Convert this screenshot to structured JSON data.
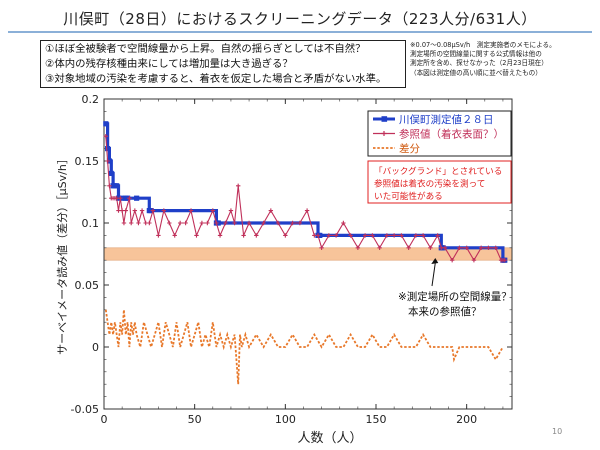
{
  "slide": {
    "title": "川俣町（28日）におけるスクリーニングデータ（223人分/631人）",
    "notes": [
      "①ほぼ全被験者で空間線量から上昇。自然の揺らぎとしては不自然？",
      "②体内の残存核種由来にしては増加量は大き過ぎる？",
      "③対象地域の汚染を考慮すると、着衣を仮定した場合と矛盾がない水準。"
    ],
    "memo": [
      "※0.07〜0.08μSv/h　測定実施者のメモによる。",
      "測定場所の空間線量に関する公式情報は他の",
      "測定所を含め、探せなかった（2月23日現在）",
      "（本図は測定値の高い順に並べ替えたもの）"
    ],
    "page_number": "10",
    "colors": {
      "title_rule": "#8bb0d8",
      "measured": "#1f3fc8",
      "reference": "#c0305a",
      "difference": "#e8782a",
      "band": "#f7c49a",
      "annotation_red": "#e02020"
    }
  },
  "chart_data": {
    "type": "line",
    "ylabel": "サーベイメータ読み値（差分）［μSv/h］",
    "xlabel": "人数（人）",
    "xlim": [
      0,
      225
    ],
    "ylim": [
      -0.05,
      0.2
    ],
    "xticks": [
      "0",
      "50",
      "100",
      "150",
      "200"
    ],
    "yticks": [
      "-0.05",
      "0",
      "0.05",
      "0.1",
      "0.15",
      "0.2"
    ],
    "grid": false,
    "legend_position": "top-right",
    "background_band": [
      0.07,
      0.08
    ],
    "series": [
      {
        "name": "川俣町測定値２８日",
        "style": "step",
        "color": "#1f3fc8",
        "x": [
          1,
          2,
          3,
          4,
          5,
          6,
          7,
          8,
          10,
          12,
          13,
          18,
          25,
          26,
          62,
          63,
          118,
          119,
          186,
          187,
          220,
          221
        ],
        "y": [
          0.18,
          0.16,
          0.15,
          0.14,
          0.13,
          0.13,
          0.13,
          0.12,
          0.12,
          0.12,
          0.12,
          0.12,
          0.11,
          0.11,
          0.1,
          0.1,
          0.09,
          0.09,
          0.08,
          0.08,
          0.07,
          0.07
        ]
      },
      {
        "name": "参照値（着衣表面？）",
        "style": "line-marker",
        "color": "#c0305a",
        "x": [
          1,
          2,
          3,
          4,
          5,
          6,
          7,
          8,
          9,
          10,
          11,
          12,
          14,
          15,
          17,
          19,
          21,
          23,
          25,
          27,
          30,
          33,
          36,
          39,
          42,
          45,
          48,
          51,
          54,
          57,
          60,
          62,
          64,
          67,
          70,
          72,
          74,
          77,
          80,
          84,
          88,
          92,
          96,
          100,
          104,
          108,
          112,
          116,
          118,
          120,
          124,
          128,
          132,
          136,
          140,
          144,
          148,
          152,
          156,
          160,
          164,
          168,
          172,
          176,
          180,
          184,
          186,
          188,
          192,
          196,
          200,
          204,
          208,
          212,
          216,
          219,
          220,
          221
        ],
        "y": [
          0.17,
          0.15,
          0.13,
          0.12,
          0.12,
          0.12,
          0.12,
          0.11,
          0.12,
          0.11,
          0.1,
          0.11,
          0.12,
          0.1,
          0.11,
          0.1,
          0.11,
          0.1,
          0.1,
          0.11,
          0.09,
          0.11,
          0.1,
          0.09,
          0.1,
          0.1,
          0.11,
          0.09,
          0.1,
          0.1,
          0.11,
          0.1,
          0.09,
          0.1,
          0.11,
          0.1,
          0.13,
          0.09,
          0.1,
          0.09,
          0.1,
          0.11,
          0.1,
          0.09,
          0.1,
          0.1,
          0.11,
          0.09,
          0.09,
          0.08,
          0.09,
          0.09,
          0.1,
          0.09,
          0.08,
          0.09,
          0.09,
          0.08,
          0.09,
          0.09,
          0.09,
          0.08,
          0.09,
          0.09,
          0.08,
          0.09,
          0.08,
          0.08,
          0.07,
          0.08,
          0.08,
          0.07,
          0.08,
          0.08,
          0.08,
          0.07,
          0.07,
          0.07
        ]
      },
      {
        "name": "差分",
        "style": "dashed",
        "color": "#e8782a",
        "x": [
          1,
          2,
          3,
          4,
          5,
          6,
          7,
          8,
          9,
          10,
          11,
          12,
          13,
          14,
          15,
          16,
          17,
          18,
          20,
          22,
          24,
          26,
          28,
          30,
          32,
          34,
          36,
          38,
          40,
          42,
          44,
          46,
          48,
          50,
          52,
          54,
          56,
          58,
          60,
          62,
          64,
          66,
          68,
          70,
          72,
          74,
          75,
          76,
          78,
          80,
          84,
          88,
          92,
          96,
          100,
          104,
          108,
          112,
          116,
          120,
          124,
          128,
          132,
          136,
          140,
          144,
          148,
          152,
          156,
          160,
          164,
          168,
          172,
          176,
          180,
          184,
          188,
          192,
          193,
          196,
          200,
          204,
          208,
          212,
          216,
          220
        ],
        "y": [
          0.03,
          0.02,
          0.01,
          0.02,
          0.01,
          0.02,
          0.01,
          0.0,
          0.02,
          0.01,
          0.03,
          0.01,
          0.02,
          0.0,
          0.02,
          0.01,
          0.02,
          0.01,
          0.0,
          0.02,
          0.01,
          0.0,
          0.01,
          0.02,
          0.0,
          0.02,
          0.01,
          0.0,
          0.02,
          0.0,
          0.01,
          0.02,
          0.0,
          0.01,
          0.02,
          0.0,
          0.01,
          0.0,
          0.02,
          0.0,
          0.01,
          0.0,
          0.01,
          0.0,
          0.01,
          -0.03,
          0.01,
          0.0,
          0.01,
          0.0,
          0.01,
          0.0,
          0.01,
          0.0,
          0.0,
          0.01,
          0.0,
          0.0,
          0.01,
          0.0,
          0.01,
          0.0,
          0.0,
          0.01,
          0.0,
          0.0,
          0.01,
          0.0,
          0.0,
          0.01,
          0.0,
          0.0,
          0.0,
          0.01,
          0.0,
          0.0,
          0.0,
          0.0,
          -0.01,
          0.0,
          0.0,
          0.0,
          0.0,
          0.0,
          -0.01,
          0.0
        ]
      }
    ],
    "annotations": [
      {
        "text": [
          "「バックグランド」とされている",
          "参照値は着衣の汚染を測って",
          "いた可能性がある"
        ],
        "color": "#e02020",
        "boxed": true
      },
      {
        "text": [
          "※測定場所の空間線量？",
          "本来の参照値？"
        ],
        "color": "#111111",
        "arrow_to": [
          186,
          0.075
        ]
      }
    ]
  }
}
